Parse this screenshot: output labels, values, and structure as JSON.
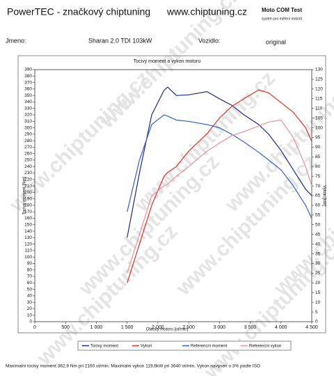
{
  "header": {
    "brand": "PowerTEC - značkový chiptuning",
    "url": "www.chiptuning.cz",
    "system": "Moto COM Test",
    "system_note": "systém pro měření motorů",
    "name_label": "Jmeno:",
    "name": "Sharan 2.0 TDI 103kW",
    "vehicle_label": "Vozidlo:",
    "vehicle": "original"
  },
  "watermark": "www.chiptuning.cz",
  "chart_data": {
    "type": "line",
    "title": "Tocivy moment a vykon motoru",
    "x_label": "Otacky motoru [ot/min]",
    "y_label": "Tocivy moment [Nm]",
    "y2_label": "Vykon [kW]",
    "x": [
      1500,
      1700,
      1900,
      2100,
      2160,
      2300,
      2500,
      2800,
      3000,
      3200,
      3400,
      3640,
      3800,
      4000,
      4200,
      4400,
      4500
    ],
    "series": [
      {
        "name": "Tocivy moment",
        "color": "#1a2a8c",
        "values": [
          130,
          230,
          320,
          358,
          363,
          350,
          351,
          356,
          345,
          335,
          320,
          305,
          290,
          265,
          235,
          205,
          195
        ]
      },
      {
        "name": "Vykon",
        "color": "#e03020",
        "axis": "y2",
        "values": [
          20,
          40,
          60,
          75,
          77,
          80,
          88,
          97,
          105,
          111,
          115,
          119.6,
          118,
          113,
          108,
          100,
          93
        ]
      },
      {
        "name": "Referencni moment",
        "color": "#3060d0",
        "values": [
          170,
          250,
          305,
          320,
          318,
          312,
          310,
          305,
          300,
          290,
          278,
          262,
          250,
          235,
          210,
          180,
          160
        ]
      },
      {
        "name": "Referencni vykon",
        "color": "#e890a0",
        "axis": "y2",
        "values": [
          25,
          45,
          65,
          70,
          71,
          75,
          80,
          88,
          92,
          96,
          98,
          101,
          103,
          104,
          95,
          80,
          70
        ]
      }
    ],
    "xlim": [
      0,
      4500
    ],
    "xticks": [
      0,
      500,
      {
        "value": 1000,
        "label": "1 000"
      },
      {
        "value": 1500,
        "label": "1 500"
      },
      {
        "value": 2000,
        "label": "2 000"
      },
      {
        "value": 2500,
        "label": "2 500"
      },
      {
        "value": 3000,
        "label": "3 000"
      },
      {
        "value": 3500,
        "label": "3 500"
      },
      {
        "value": 4000,
        "label": "4 000"
      },
      {
        "value": 4500,
        "label": "4 500"
      }
    ],
    "ylim": [
      0,
      390
    ],
    "yticks": [
      0,
      10,
      20,
      30,
      40,
      50,
      60,
      70,
      80,
      90,
      100,
      110,
      120,
      130,
      140,
      150,
      160,
      170,
      180,
      190,
      200,
      210,
      220,
      230,
      240,
      250,
      260,
      270,
      280,
      290,
      300,
      310,
      320,
      330,
      340,
      350,
      360,
      370,
      380,
      390
    ],
    "y2lim": [
      0,
      130
    ],
    "y2ticks": [
      0,
      5,
      10,
      15,
      20,
      25,
      30,
      35,
      40,
      45,
      50,
      55,
      60,
      65,
      70,
      75,
      80,
      85,
      90,
      95,
      100,
      105,
      110,
      115,
      120,
      125,
      130
    ],
    "grid": false
  },
  "footer": "Maximalni tocivy moment 362,9 Nm pri 2160 ot/min.  Maximalni vykon 119,6kW pri 3640 ot/min.  Vykon navysen o 3% podle ISO"
}
